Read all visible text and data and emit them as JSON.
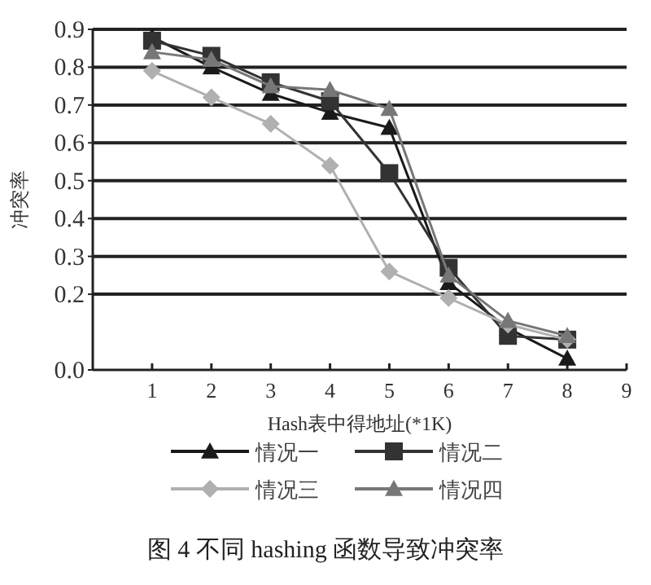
{
  "chart_data": {
    "type": "line",
    "xlabel": "Hash表中得地址(*1K)",
    "ylabel": "冲突率",
    "annotations": [
      "图 4 不同 hashing 函数导致冲突率"
    ],
    "x": [
      1,
      2,
      3,
      4,
      5,
      6,
      7,
      8
    ],
    "xlim": [
      0,
      9
    ],
    "xticks": [
      1,
      2,
      3,
      4,
      5,
      6,
      7,
      8,
      9
    ],
    "ylim": [
      0,
      0.9
    ],
    "yticks": [
      {
        "value": 0,
        "label": "0.0"
      },
      0.2,
      0.3,
      0.4,
      0.5,
      0.6,
      0.7,
      0.8,
      0.9
    ],
    "grid": "y",
    "legend": "bottom",
    "series": [
      {
        "name": "情况一",
        "color": "#1a1a1a",
        "marker": "triangle",
        "values": [
          0.88,
          0.8,
          0.73,
          0.68,
          0.64,
          0.23,
          0.11,
          0.03
        ]
      },
      {
        "name": "情况二",
        "color": "#333333",
        "marker": "square",
        "values": [
          0.87,
          0.83,
          0.76,
          0.71,
          0.52,
          0.27,
          0.09,
          0.08
        ]
      },
      {
        "name": "情况三",
        "color": "#b0b0b0",
        "marker": "diamond",
        "values": [
          0.79,
          0.72,
          0.65,
          0.54,
          0.26,
          0.19,
          0.12,
          0.08
        ]
      },
      {
        "name": "情况四",
        "color": "#777777",
        "marker": "triangle",
        "values": [
          0.84,
          0.82,
          0.75,
          0.74,
          0.69,
          0.25,
          0.13,
          0.09
        ]
      }
    ]
  }
}
